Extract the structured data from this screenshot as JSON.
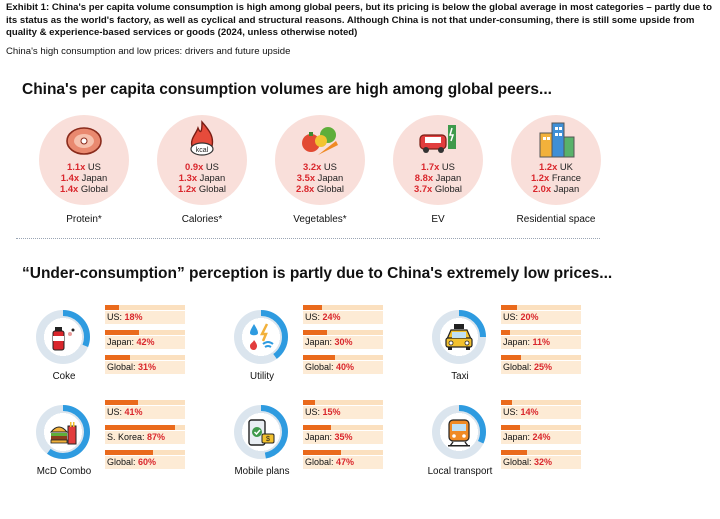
{
  "header": {
    "title": "Exhibit 1: China's per capita volume consumption is high among global peers, but its pricing is below the global average in most categories – partly due to its status as the world's factory, as well as cyclical and structural reasons. Although China is not that under-consuming, there is still some upside from quality & experience-based services or goods (2024, unless otherwise noted)",
    "subtitle": "China's high consumption and low prices: drivers and future upside"
  },
  "colors": {
    "accent_red": "#d9262c",
    "bar_orange": "#ea6a1c",
    "bar_track": "#fbe0bf",
    "card_circle": "#f9dfda",
    "ring_grey": "#dbe5ee",
    "ring_blue": "#2e9be0"
  },
  "chart_data": [
    {
      "type": "table",
      "title": "China's per capita consumption volumes are high among global peers...",
      "categories": [
        "Protein*",
        "Calories*",
        "Vegetables*",
        "EV",
        "Residential space"
      ],
      "icons": [
        "meat-icon",
        "calorie-flame-icon",
        "vegetables-icon",
        "ev-charger-icon",
        "buildings-icon"
      ],
      "rows": [
        [
          {
            "mult": "1.1x",
            "peer": "US"
          },
          {
            "mult": "1.4x",
            "peer": "Japan"
          },
          {
            "mult": "1.4x",
            "peer": "Global"
          }
        ],
        [
          {
            "mult": "0.9x",
            "peer": "US"
          },
          {
            "mult": "1.3x",
            "peer": "Japan"
          },
          {
            "mult": "1.2x",
            "peer": "Global"
          }
        ],
        [
          {
            "mult": "3.2x",
            "peer": "US"
          },
          {
            "mult": "3.5x",
            "peer": "Japan"
          },
          {
            "mult": "2.8x",
            "peer": "Global"
          }
        ],
        [
          {
            "mult": "1.7x",
            "peer": "US"
          },
          {
            "mult": "8.8x",
            "peer": "Japan"
          },
          {
            "mult": "3.7x",
            "peer": "Global"
          }
        ],
        [
          {
            "mult": "1.2x",
            "peer": "UK"
          },
          {
            "mult": "1.2x",
            "peer": "France"
          },
          {
            "mult": "2.0x",
            "peer": "Japan"
          }
        ]
      ],
      "values": {
        "Protein*": {
          "US": 1.1,
          "Japan": 1.4,
          "Global": 1.4
        },
        "Calories*": {
          "US": 0.9,
          "Japan": 1.3,
          "Global": 1.2
        },
        "Vegetables*": {
          "US": 3.2,
          "Japan": 3.5,
          "Global": 2.8
        },
        "EV": {
          "US": 1.7,
          "Japan": 8.8,
          "Global": 3.7
        },
        "Residential space": {
          "UK": 1.2,
          "France": 1.2,
          "Japan": 2.0
        }
      }
    },
    {
      "type": "bar",
      "title": "“Under-consumption” perception is partly due to China's extremely low prices...",
      "ylim": [
        0,
        100
      ],
      "unit": "%",
      "items": [
        {
          "label": "Coke",
          "icon": "coke-can-icon",
          "ring_value": 31,
          "bars": [
            {
              "peer": "US:",
              "value": 18,
              "text": "18%"
            },
            {
              "peer": "Japan:",
              "value": 42,
              "text": "42%"
            },
            {
              "peer": "Global:",
              "value": 31,
              "text": "31%"
            }
          ]
        },
        {
          "label": "Utility",
          "icon": "utility-icon",
          "ring_value": 40,
          "bars": [
            {
              "peer": "US:",
              "value": 24,
              "text": "24%"
            },
            {
              "peer": "Japan:",
              "value": 30,
              "text": "30%"
            },
            {
              "peer": "Global:",
              "value": 40,
              "text": "40%"
            }
          ]
        },
        {
          "label": "Taxi",
          "icon": "taxi-icon",
          "ring_value": 25,
          "bars": [
            {
              "peer": "US:",
              "value": 20,
              "text": "20%"
            },
            {
              "peer": "Japan:",
              "value": 11,
              "text": "11%"
            },
            {
              "peer": "Global:",
              "value": 25,
              "text": "25%"
            }
          ]
        },
        {
          "label": "McD Combo",
          "icon": "burger-combo-icon",
          "ring_value": 60,
          "bars": [
            {
              "peer": "US:",
              "value": 41,
              "text": "41%"
            },
            {
              "peer": "S. Korea:",
              "value": 87,
              "text": "87%"
            },
            {
              "peer": "Global:",
              "value": 60,
              "text": "60%"
            }
          ]
        },
        {
          "label": "Mobile plans",
          "icon": "mobile-plan-icon",
          "ring_value": 47,
          "bars": [
            {
              "peer": "US:",
              "value": 15,
              "text": "15%"
            },
            {
              "peer": "Japan:",
              "value": 35,
              "text": "35%"
            },
            {
              "peer": "Global:",
              "value": 47,
              "text": "47%"
            }
          ]
        },
        {
          "label": "Local transport",
          "icon": "train-icon",
          "ring_value": 32,
          "bars": [
            {
              "peer": "US:",
              "value": 14,
              "text": "14%"
            },
            {
              "peer": "Japan:",
              "value": 24,
              "text": "24%"
            },
            {
              "peer": "Global:",
              "value": 32,
              "text": "32%"
            }
          ]
        }
      ]
    }
  ]
}
